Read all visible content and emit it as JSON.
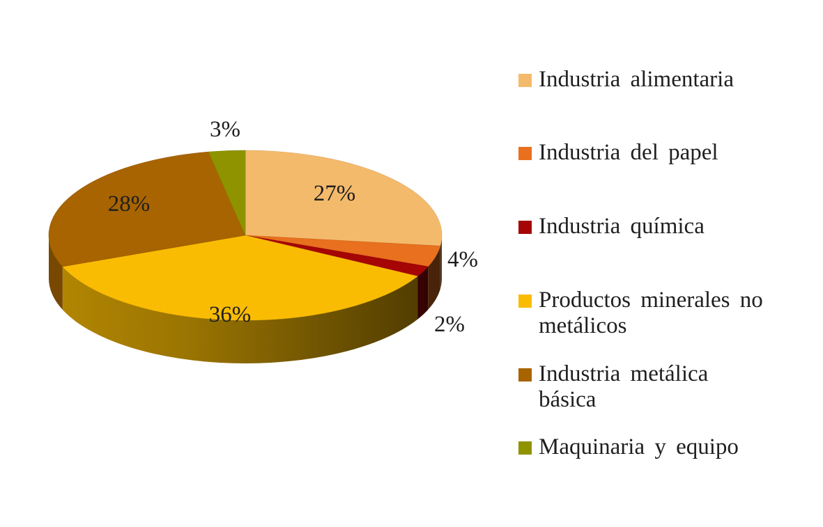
{
  "chart_data": {
    "type": "pie",
    "style": "3d",
    "title": "",
    "categories": [
      "Industria alimentaria",
      "Industria del papel",
      "Industria química",
      "Productos minerales no metálicos",
      "Industria metálica básica",
      "Maquinaria y equipo"
    ],
    "values": [
      27,
      4,
      2,
      36,
      28,
      3
    ],
    "labels": [
      "27%",
      "4%",
      "2%",
      "36%",
      "28%",
      "3%"
    ],
    "colors": [
      "#F4BA6C",
      "#E8701E",
      "#A50505",
      "#FABC03",
      "#A86400",
      "#8F9300"
    ],
    "legend_position": "right"
  },
  "legend": {
    "items": [
      {
        "label": "Industria alimentaria",
        "color": "#F4BA6C"
      },
      {
        "label": "Industria del papel",
        "color": "#E8701E"
      },
      {
        "label": "Industria química",
        "color": "#A50505"
      },
      {
        "label": "Productos minerales no metálicos",
        "color": "#FABC03"
      },
      {
        "label": "Industria metálica básica",
        "color": "#A86400"
      },
      {
        "label": "Maquinaria y equipo",
        "color": "#8F9300"
      }
    ]
  }
}
